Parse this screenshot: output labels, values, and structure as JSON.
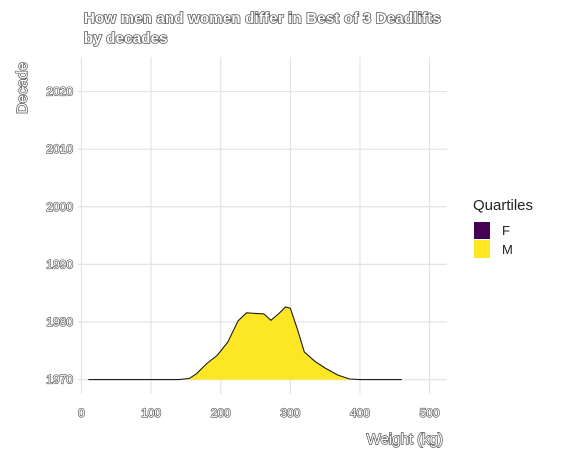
{
  "chart_data": {
    "type": "area",
    "title_lines": [
      "How men and women differ in Best of 3 Deadlifts",
      "by decades"
    ],
    "xlabel": "Weight (kg)",
    "ylabel": "Decade",
    "xlim": [
      -5,
      525
    ],
    "ylim": [
      1967.5,
      2026
    ],
    "x_ticks": [
      0,
      100,
      200,
      300,
      400,
      500
    ],
    "y_ticks": [
      1970,
      1980,
      1990,
      2000,
      2010,
      2020
    ],
    "grid": true,
    "legend": {
      "title": "Quartiles",
      "position": "right",
      "entries": [
        {
          "name": "F",
          "color": "#440154"
        },
        {
          "name": "M",
          "color": "#FDE725"
        }
      ]
    },
    "ridges": [
      {
        "decade": 1970,
        "series": "M",
        "color": "#FDE725",
        "points": [
          [
            10,
            0.0
          ],
          [
            50,
            0.0
          ],
          [
            100,
            0.0
          ],
          [
            140,
            0.0
          ],
          [
            155,
            0.2
          ],
          [
            165,
            1.0
          ],
          [
            180,
            2.8
          ],
          [
            195,
            4.2
          ],
          [
            210,
            6.5
          ],
          [
            225,
            10.2
          ],
          [
            237,
            11.6
          ],
          [
            250,
            11.5
          ],
          [
            262,
            11.4
          ],
          [
            272,
            10.3
          ],
          [
            283,
            11.4
          ],
          [
            293,
            12.6
          ],
          [
            300,
            12.4
          ],
          [
            310,
            8.8
          ],
          [
            320,
            4.8
          ],
          [
            335,
            3.2
          ],
          [
            350,
            2.0
          ],
          [
            368,
            0.8
          ],
          [
            385,
            0.1
          ],
          [
            400,
            0.0
          ],
          [
            440,
            0.0
          ],
          [
            460,
            0.0
          ]
        ]
      }
    ]
  }
}
